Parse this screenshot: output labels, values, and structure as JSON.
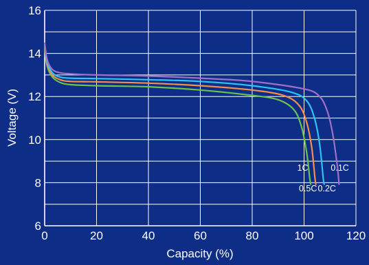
{
  "chart_data": {
    "type": "line",
    "title": "",
    "xlabel": "Capacity (%)",
    "ylabel": "Voltage (V)",
    "xlim": [
      0,
      120
    ],
    "ylim": [
      6,
      16
    ],
    "x_ticks": [
      "0",
      "20",
      "40",
      "60",
      "80",
      "100",
      "120"
    ],
    "y_ticks": [
      "6",
      "8",
      "10",
      "12",
      "14",
      "16"
    ],
    "grid": true,
    "legend": "none",
    "background": "#0e2d86",
    "series": [
      {
        "name": "1C",
        "color": "#6cc24a",
        "points": [
          [
            0,
            14.2
          ],
          [
            1,
            13.4
          ],
          [
            3,
            12.9
          ],
          [
            6,
            12.65
          ],
          [
            10,
            12.55
          ],
          [
            20,
            12.5
          ],
          [
            40,
            12.45
          ],
          [
            60,
            12.3
          ],
          [
            80,
            12.05
          ],
          [
            90,
            11.85
          ],
          [
            96,
            11.4
          ],
          [
            99,
            10.6
          ],
          [
            101,
            9.4
          ],
          [
            102.2,
            8.2
          ],
          [
            102.6,
            7.9
          ]
        ]
      },
      {
        "name": "0.5C",
        "color": "#f58e49",
        "points": [
          [
            0,
            14.3
          ],
          [
            1,
            13.5
          ],
          [
            3,
            13.0
          ],
          [
            6,
            12.78
          ],
          [
            10,
            12.7
          ],
          [
            20,
            12.68
          ],
          [
            40,
            12.62
          ],
          [
            60,
            12.5
          ],
          [
            80,
            12.3
          ],
          [
            92,
            12.05
          ],
          [
            98,
            11.6
          ],
          [
            101,
            10.8
          ],
          [
            103,
            9.6
          ],
          [
            104.2,
            8.2
          ],
          [
            104.6,
            7.9
          ]
        ]
      },
      {
        "name": "0.2C",
        "color": "#2ec4f1",
        "points": [
          [
            0,
            14.4
          ],
          [
            1,
            13.6
          ],
          [
            3,
            13.1
          ],
          [
            6,
            12.9
          ],
          [
            10,
            12.85
          ],
          [
            20,
            12.83
          ],
          [
            40,
            12.78
          ],
          [
            60,
            12.7
          ],
          [
            80,
            12.5
          ],
          [
            95,
            12.2
          ],
          [
            101,
            11.8
          ],
          [
            104,
            11.0
          ],
          [
            106,
            9.8
          ],
          [
            107.4,
            8.2
          ],
          [
            107.8,
            7.9
          ]
        ]
      },
      {
        "name": "0.1C",
        "color": "#a070c8",
        "points": [
          [
            0,
            14.5
          ],
          [
            1,
            13.7
          ],
          [
            3,
            13.25
          ],
          [
            6,
            13.1
          ],
          [
            10,
            13.05
          ],
          [
            20,
            13.0
          ],
          [
            40,
            12.95
          ],
          [
            60,
            12.85
          ],
          [
            80,
            12.7
          ],
          [
            100,
            12.35
          ],
          [
            106,
            12.0
          ],
          [
            109,
            11.3
          ],
          [
            111,
            10.3
          ],
          [
            112.8,
            8.8
          ],
          [
            113.5,
            7.9
          ]
        ]
      }
    ]
  }
}
